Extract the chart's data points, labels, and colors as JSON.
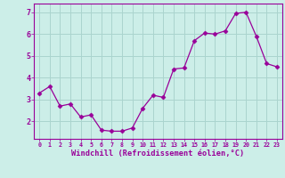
{
  "x": [
    0,
    1,
    2,
    3,
    4,
    5,
    6,
    7,
    8,
    9,
    10,
    11,
    12,
    13,
    14,
    15,
    16,
    17,
    18,
    19,
    20,
    21,
    22,
    23
  ],
  "y": [
    3.3,
    3.6,
    2.7,
    2.8,
    2.2,
    2.3,
    1.6,
    1.55,
    1.55,
    1.7,
    2.6,
    3.2,
    3.1,
    4.4,
    4.45,
    5.7,
    6.05,
    6.0,
    6.15,
    6.95,
    7.0,
    5.9,
    4.65,
    4.5
  ],
  "line_color": "#990099",
  "marker": "D",
  "marker_size": 2.5,
  "bg_color": "#cceee8",
  "grid_color": "#aad4ce",
  "xlabel": "Windchill (Refroidissement éolien,°C)",
  "xlabel_color": "#990099",
  "tick_color": "#990099",
  "ylim": [
    1.2,
    7.4
  ],
  "xlim": [
    -0.5,
    23.5
  ],
  "yticks": [
    2,
    3,
    4,
    5,
    6,
    7
  ],
  "xticks": [
    0,
    1,
    2,
    3,
    4,
    5,
    6,
    7,
    8,
    9,
    10,
    11,
    12,
    13,
    14,
    15,
    16,
    17,
    18,
    19,
    20,
    21,
    22,
    23
  ]
}
